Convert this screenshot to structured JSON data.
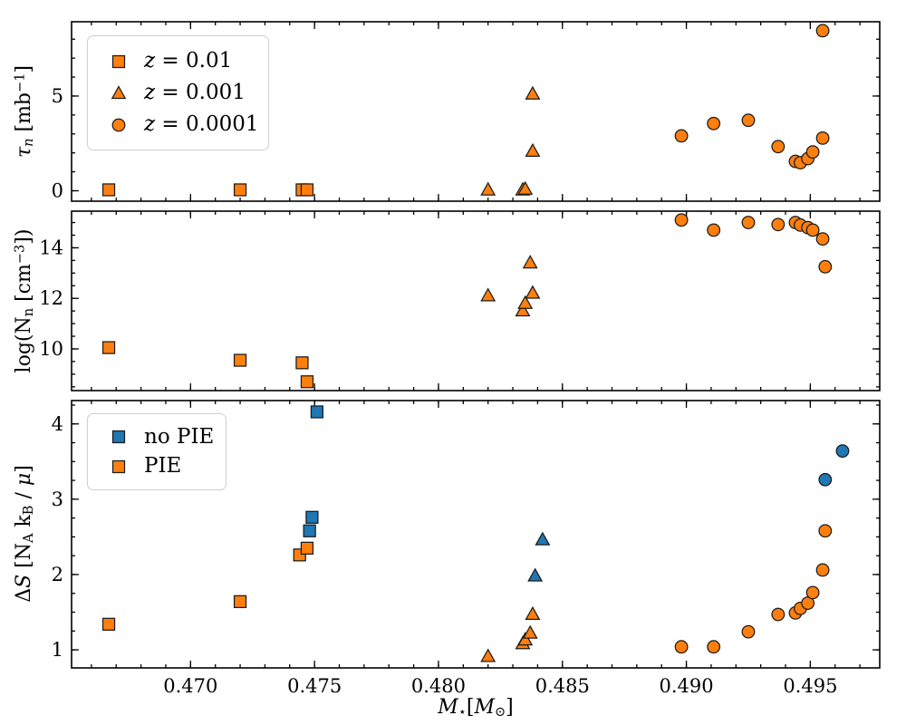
{
  "figure": {
    "description": "Three stacked scatter panels sharing a stellar-mass x-axis"
  },
  "colors": {
    "orange": "#ff7f0e",
    "blue": "#1f77b4",
    "marker_edge": "#1b1b1b",
    "axis": "#000000",
    "legend_border": "#cfcfcf"
  },
  "x_axis": {
    "label_parts": [
      {
        "t": "M",
        "s": "it"
      },
      {
        "t": "⋆",
        "s": "sub"
      },
      {
        "t": "[",
        "s": ""
      },
      {
        "t": "M",
        "s": "it"
      },
      {
        "t": "⊙",
        "s": "sub"
      },
      {
        "t": "]",
        "s": ""
      }
    ],
    "lim": [
      0.4652,
      0.4978
    ],
    "ticks": [
      {
        "v": 0.47,
        "label": "0.470"
      },
      {
        "v": 0.475,
        "label": "0.475"
      },
      {
        "v": 0.48,
        "label": "0.480"
      },
      {
        "v": 0.485,
        "label": "0.485"
      },
      {
        "v": 0.49,
        "label": "0.490"
      },
      {
        "v": 0.495,
        "label": "0.495"
      }
    ],
    "minor_step": 0.001
  },
  "chart_data": [
    {
      "id": "tau",
      "type": "scatter",
      "ylabel_parts": [
        {
          "t": "τ",
          "s": "it"
        },
        {
          "t": "n",
          "s": "sub it"
        },
        {
          "t": " [mb",
          "s": ""
        },
        {
          "t": "−1",
          "s": "sup"
        },
        {
          "t": "]",
          "s": ""
        }
      ],
      "ylim": [
        -0.55,
        8.92
      ],
      "yticks": [
        {
          "v": 0,
          "label": "0"
        },
        {
          "v": 5,
          "label": "5"
        }
      ],
      "yminor_step": 1,
      "legend": {
        "items": [
          {
            "marker": "square",
            "color": "#ff7f0e",
            "label_parts": [
              {
                "t": "z",
                "s": "it"
              },
              {
                "t": " = 0.01",
                "s": ""
              }
            ]
          },
          {
            "marker": "triangle",
            "color": "#ff7f0e",
            "label_parts": [
              {
                "t": "z",
                "s": "it"
              },
              {
                "t": " = 0.001",
                "s": ""
              }
            ]
          },
          {
            "marker": "circle",
            "color": "#ff7f0e",
            "label_parts": [
              {
                "t": "z",
                "s": "it"
              },
              {
                "t": " = 0.0001",
                "s": ""
              }
            ]
          }
        ]
      },
      "series": [
        {
          "name": "z = 0.01",
          "marker": "square",
          "color": "#ff7f0e",
          "points": [
            [
              0.4667,
              0.05
            ],
            [
              0.472,
              0.05
            ],
            [
              0.4745,
              0.05
            ],
            [
              0.4747,
              0.05
            ]
          ]
        },
        {
          "name": "z = 0.001",
          "marker": "triangle",
          "color": "#ff7f0e",
          "points": [
            [
              0.482,
              0.04
            ],
            [
              0.4834,
              0.04
            ],
            [
              0.4835,
              0.08
            ],
            [
              0.4838,
              2.08
            ],
            [
              0.4838,
              5.1
            ]
          ]
        },
        {
          "name": "z = 0.0001",
          "marker": "circle",
          "color": "#ff7f0e",
          "points": [
            [
              0.4898,
              2.9
            ],
            [
              0.4911,
              3.55
            ],
            [
              0.4925,
              3.72
            ],
            [
              0.4937,
              2.33
            ],
            [
              0.4944,
              1.55
            ],
            [
              0.4946,
              1.48
            ],
            [
              0.4949,
              1.7
            ],
            [
              0.4951,
              2.05
            ],
            [
              0.4955,
              2.78
            ],
            [
              0.4955,
              8.45
            ]
          ]
        }
      ]
    },
    {
      "id": "logNn",
      "type": "scatter",
      "ylabel_parts": [
        {
          "t": "log(N",
          "s": ""
        },
        {
          "t": "n",
          "s": "sub"
        },
        {
          "t": " [cm",
          "s": ""
        },
        {
          "t": "−3",
          "s": "sup"
        },
        {
          "t": "])",
          "s": ""
        }
      ],
      "ylim": [
        8.35,
        15.45
      ],
      "yticks": [
        {
          "v": 10,
          "label": "10"
        },
        {
          "v": 12,
          "label": "12"
        },
        {
          "v": 14,
          "label": "14"
        }
      ],
      "yminor_step": 0.5,
      "legend": null,
      "series": [
        {
          "name": "z = 0.01",
          "marker": "square",
          "color": "#ff7f0e",
          "points": [
            [
              0.4667,
              10.05
            ],
            [
              0.472,
              9.55
            ],
            [
              0.4745,
              9.45
            ],
            [
              0.4747,
              8.7
            ]
          ]
        },
        {
          "name": "z = 0.001",
          "marker": "triangle",
          "color": "#ff7f0e",
          "points": [
            [
              0.482,
              12.1
            ],
            [
              0.4834,
              11.5
            ],
            [
              0.4835,
              11.8
            ],
            [
              0.4837,
              13.4
            ],
            [
              0.4838,
              12.2
            ]
          ]
        },
        {
          "name": "z = 0.0001",
          "marker": "circle",
          "color": "#ff7f0e",
          "points": [
            [
              0.4898,
              15.1
            ],
            [
              0.4911,
              14.7
            ],
            [
              0.4925,
              15.0
            ],
            [
              0.4937,
              14.92
            ],
            [
              0.4944,
              15.0
            ],
            [
              0.4946,
              14.9
            ],
            [
              0.4949,
              14.8
            ],
            [
              0.4951,
              14.7
            ],
            [
              0.4955,
              14.35
            ],
            [
              0.4956,
              13.25
            ]
          ]
        }
      ]
    },
    {
      "id": "deltaS",
      "type": "scatter",
      "ylabel_parts": [
        {
          "t": "Δ",
          "s": ""
        },
        {
          "t": "S",
          "s": "it"
        },
        {
          "t": " [N",
          "s": ""
        },
        {
          "t": "A",
          "s": "sub"
        },
        {
          "t": " k",
          "s": ""
        },
        {
          "t": "B",
          "s": "sub"
        },
        {
          "t": " / ",
          "s": ""
        },
        {
          "t": "μ",
          "s": "it"
        },
        {
          "t": "]",
          "s": ""
        }
      ],
      "ylim": [
        0.76,
        4.31
      ],
      "yticks": [
        {
          "v": 1,
          "label": "1"
        },
        {
          "v": 2,
          "label": "2"
        },
        {
          "v": 3,
          "label": "3"
        },
        {
          "v": 4,
          "label": "4"
        }
      ],
      "yminor_step": 0.25,
      "legend": {
        "items": [
          {
            "marker": "square",
            "color": "#1f77b4",
            "label_parts": [
              {
                "t": "no PIE",
                "s": ""
              }
            ]
          },
          {
            "marker": "square",
            "color": "#ff7f0e",
            "label_parts": [
              {
                "t": "PIE",
                "s": ""
              }
            ]
          }
        ]
      },
      "series": [
        {
          "name": "PIE z = 0.01",
          "marker": "square",
          "color": "#ff7f0e",
          "points": [
            [
              0.4667,
              1.34
            ],
            [
              0.472,
              1.64
            ],
            [
              0.4744,
              2.26
            ],
            [
              0.4747,
              2.35
            ]
          ]
        },
        {
          "name": "no PIE z = 0.01",
          "marker": "square",
          "color": "#1f77b4",
          "points": [
            [
              0.4748,
              2.58
            ],
            [
              0.4749,
              2.76
            ],
            [
              0.4751,
              4.16
            ]
          ]
        },
        {
          "name": "PIE z = 0.001",
          "marker": "triangle",
          "color": "#ff7f0e",
          "points": [
            [
              0.482,
              0.91
            ],
            [
              0.4834,
              1.08
            ],
            [
              0.4835,
              1.13
            ],
            [
              0.4837,
              1.22
            ],
            [
              0.4838,
              1.47
            ]
          ]
        },
        {
          "name": "no PIE z = 0.001",
          "marker": "triangle",
          "color": "#1f77b4",
          "points": [
            [
              0.4839,
              1.98
            ],
            [
              0.4842,
              2.46
            ]
          ]
        },
        {
          "name": "PIE z = 0.0001",
          "marker": "circle",
          "color": "#ff7f0e",
          "points": [
            [
              0.4898,
              1.04
            ],
            [
              0.4911,
              1.04
            ],
            [
              0.4925,
              1.24
            ],
            [
              0.4937,
              1.47
            ],
            [
              0.4944,
              1.49
            ],
            [
              0.4946,
              1.55
            ],
            [
              0.4949,
              1.62
            ],
            [
              0.4951,
              1.76
            ],
            [
              0.4955,
              2.06
            ],
            [
              0.4956,
              2.58
            ]
          ]
        },
        {
          "name": "no PIE z = 0.0001",
          "marker": "circle",
          "color": "#1f77b4",
          "points": [
            [
              0.4956,
              3.26
            ],
            [
              0.4963,
              3.64
            ]
          ]
        }
      ]
    }
  ]
}
